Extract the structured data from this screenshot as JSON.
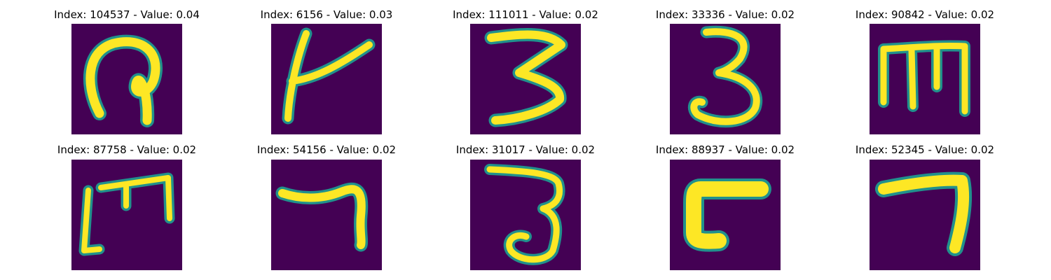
{
  "colors": {
    "background": "#440154",
    "stroke": "#fde725",
    "edge": "#21918c"
  },
  "panels": [
    {
      "title": "Index: 104537 - Value: 0.04",
      "glyph": "curled-stroke"
    },
    {
      "title": "Index: 6156 - Value: 0.03",
      "glyph": "k-stroke"
    },
    {
      "title": "Index: 111011 - Value: 0.02",
      "glyph": "three-stroke"
    },
    {
      "title": "Index: 33336 - Value: 0.02",
      "glyph": "three-stroke"
    },
    {
      "title": "Index: 90842 - Value: 0.02",
      "glyph": "m-stroke"
    },
    {
      "title": "Index: 87758 - Value: 0.02",
      "glyph": "m-stroke"
    },
    {
      "title": "Index: 54156 - Value: 0.02",
      "glyph": "seven-stroke"
    },
    {
      "title": "Index: 31017 - Value: 0.02",
      "glyph": "three-stroke"
    },
    {
      "title": "Index: 88937 - Value: 0.02",
      "glyph": "corner-stroke"
    },
    {
      "title": "Index: 52345 - Value: 0.02",
      "glyph": "seven-stroke"
    }
  ]
}
